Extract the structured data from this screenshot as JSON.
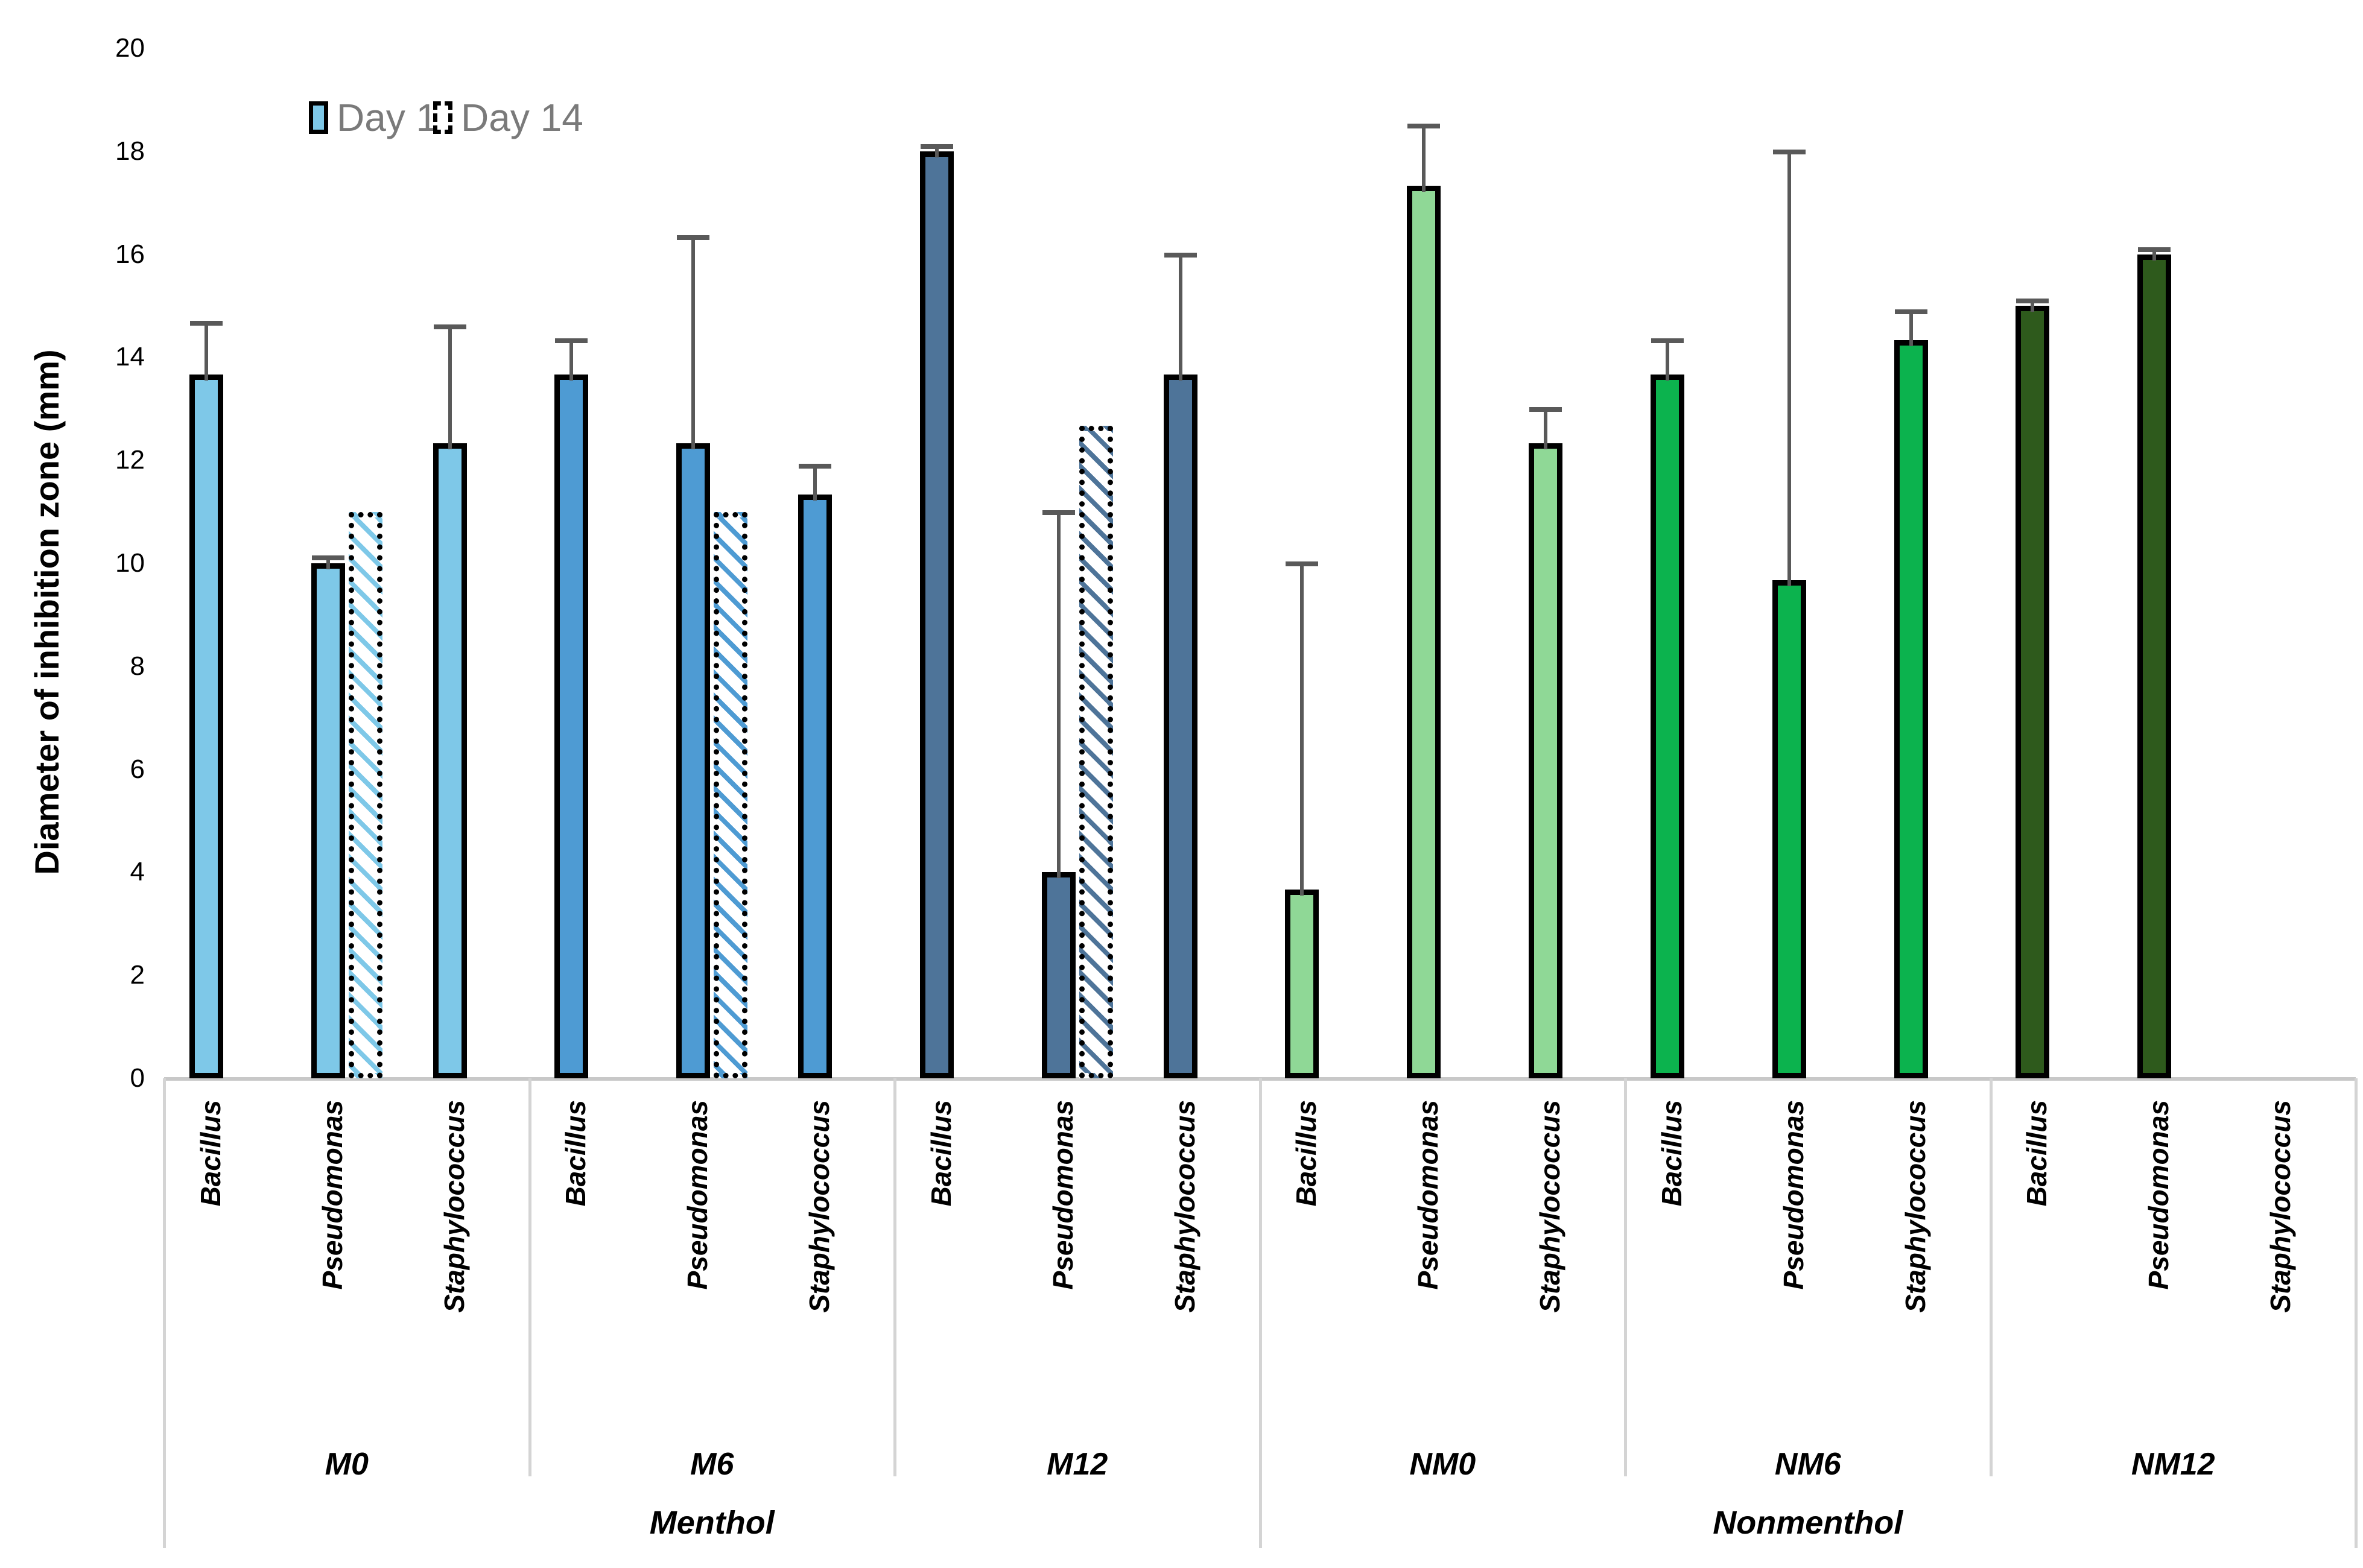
{
  "legend": {
    "day1_label": "Day 1",
    "day14_label": "Day 14"
  },
  "y_axis": {
    "title": "Diameter of inhibition zone (mm)",
    "min": 0,
    "max": 20,
    "step": 2,
    "ticks": [
      0,
      2,
      4,
      6,
      8,
      10,
      12,
      14,
      16,
      18,
      20
    ]
  },
  "styles": {
    "bar_border": "#000000",
    "error_bar": "#595959",
    "frame_line": "#D4D4D4",
    "axis_line": "#C8C8C8",
    "legend_text": "#7A7A7A",
    "day1_swatch_fill": "#7EC8E8"
  },
  "chart_data": {
    "type": "bar",
    "title": "",
    "xlabel": "",
    "ylabel": "Diameter of inhibition zone (mm)",
    "ylim": [
      0,
      20
    ],
    "grid": false,
    "legend_entries": [
      "Day 1",
      "Day 14"
    ],
    "legend_position": "top-left",
    "series_note": "day1 = solid bar; day14 = dotted-border hatched bar; err_top = top of upward error whisker",
    "families": [
      {
        "label": "Menthol",
        "groups": [
          {
            "label": "M0",
            "color": "#7EC8E8",
            "bars": [
              {
                "category": "Bacillus",
                "day1": 13.67,
                "day1_err_top": 14.67,
                "day14": null,
                "day14_err_top": null
              },
              {
                "category": "Pseudomonas",
                "day1": 10.0,
                "day1_err_top": 10.12,
                "day14": 11.0,
                "day14_err_top": null
              },
              {
                "category": "Staphylococcus",
                "day1": 12.33,
                "day1_err_top": 14.6,
                "day14": null,
                "day14_err_top": null
              }
            ]
          },
          {
            "label": "M6",
            "color": "#4E9BD3",
            "bars": [
              {
                "category": "Bacillus",
                "day1": 13.67,
                "day1_err_top": 14.33,
                "day14": null,
                "day14_err_top": null
              },
              {
                "category": "Pseudomonas",
                "day1": 12.33,
                "day1_err_top": 16.33,
                "day14": 11.0,
                "day14_err_top": null
              },
              {
                "category": "Staphylococcus",
                "day1": 11.33,
                "day1_err_top": 11.9,
                "day14": null,
                "day14_err_top": null
              }
            ]
          },
          {
            "label": "M12",
            "color": "#4E7499",
            "bars": [
              {
                "category": "Bacillus",
                "day1": 18.0,
                "day1_err_top": 18.1,
                "day14": null,
                "day14_err_top": null
              },
              {
                "category": "Pseudomonas",
                "day1": 4.0,
                "day1_err_top": 11.0,
                "day14": 12.67,
                "day14_err_top": null
              },
              {
                "category": "Staphylococcus",
                "day1": 13.67,
                "day1_err_top": 16.0,
                "day14": null,
                "day14_err_top": null
              }
            ]
          }
        ]
      },
      {
        "label": "Nonmenthol",
        "groups": [
          {
            "label": "NM0",
            "color": "#8FD896",
            "bars": [
              {
                "category": "Bacillus",
                "day1": 3.67,
                "day1_err_top": 10.0,
                "day14": null,
                "day14_err_top": null
              },
              {
                "category": "Pseudomonas",
                "day1": 17.33,
                "day1_err_top": 18.5,
                "day14": null,
                "day14_err_top": null
              },
              {
                "category": "Staphylococcus",
                "day1": 12.33,
                "day1_err_top": 13.0,
                "day14": null,
                "day14_err_top": null
              }
            ]
          },
          {
            "label": "NM6",
            "color": "#0CB34E",
            "bars": [
              {
                "category": "Bacillus",
                "day1": 13.67,
                "day1_err_top": 14.33,
                "day14": null,
                "day14_err_top": null
              },
              {
                "category": "Pseudomonas",
                "day1": 9.67,
                "day1_err_top": 18.0,
                "day14": null,
                "day14_err_top": null
              },
              {
                "category": "Staphylococcus",
                "day1": 14.33,
                "day1_err_top": 14.9,
                "day14": null,
                "day14_err_top": null
              }
            ]
          },
          {
            "label": "NM12",
            "color": "#2E5A1C",
            "bars": [
              {
                "category": "Bacillus",
                "day1": 15.0,
                "day1_err_top": 15.1,
                "day14": null,
                "day14_err_top": null
              },
              {
                "category": "Pseudomonas",
                "day1": 16.0,
                "day1_err_top": 16.1,
                "day14": null,
                "day14_err_top": null
              },
              {
                "category": "Staphylococcus",
                "day1": null,
                "day1_err_top": null,
                "day14": null,
                "day14_err_top": null
              }
            ]
          }
        ]
      }
    ]
  }
}
